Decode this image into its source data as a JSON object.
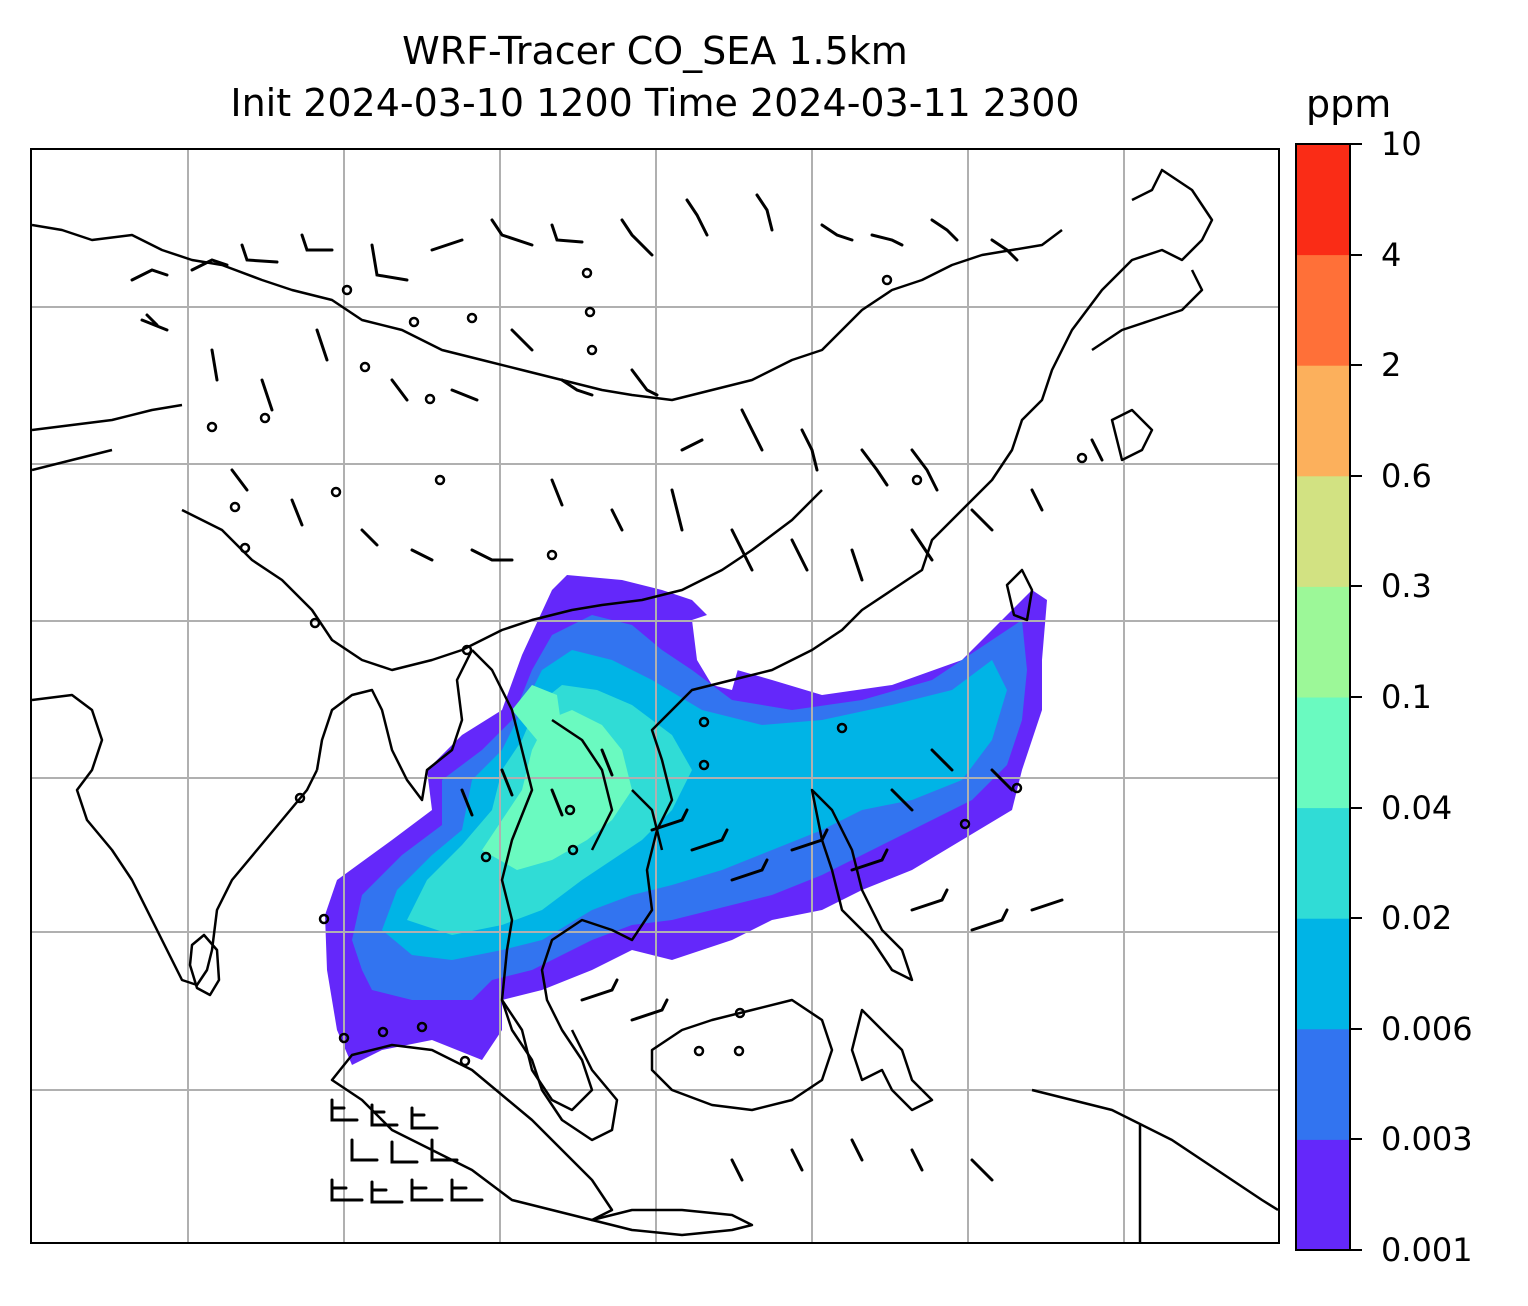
{
  "title": {
    "line1": "WRF-Tracer CO_SEA 1.5km",
    "line2": "Init 2024-03-10 1200 Time 2024-03-11 2300"
  },
  "colorbar": {
    "unit": "ppm",
    "levels": [
      "0.001",
      "0.003",
      "0.006",
      "0.02",
      "0.04",
      "0.1",
      "0.3",
      "0.6",
      "2",
      "4",
      "10"
    ],
    "colors": [
      "#6428fa",
      "#3274f0",
      "#00b4e6",
      "#30dcd6",
      "#6afac0",
      "#9cf898",
      "#d2e282",
      "#fcb05c",
      "#ff7038",
      "#fa2c16"
    ]
  },
  "map": {
    "gridlines": true,
    "content": [
      "coastlines",
      "country-borders",
      "co-tracer-concentration",
      "wind-barbs"
    ]
  }
}
